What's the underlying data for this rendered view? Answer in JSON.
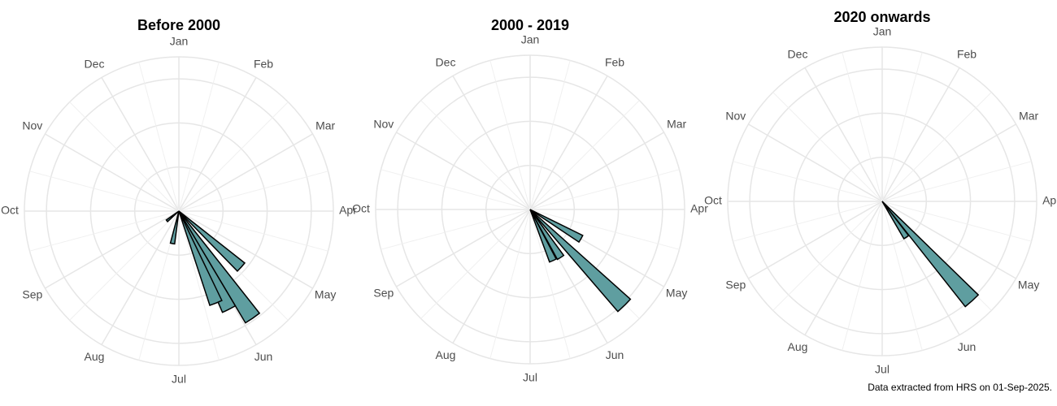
{
  "chart_data": [
    {
      "type": "polar_bar",
      "title": "Before 2000",
      "x": [
        5.4,
        5.85,
        6.1,
        6.27,
        7.37,
        8.7
      ],
      "values": [
        19,
        29.5,
        25,
        22.5,
        7.5,
        3.5
      ],
      "color": "#5f9ea0",
      "xlim": [
        0.5,
        12.5
      ],
      "xticks": [
        {
          "value": 1,
          "label": "Jan"
        },
        {
          "value": 2,
          "label": "Feb"
        },
        {
          "value": 3,
          "label": "Mar"
        },
        {
          "value": 4,
          "label": "Apr"
        },
        {
          "value": 5,
          "label": "May"
        },
        {
          "value": 6,
          "label": "Jun"
        },
        {
          "value": 7,
          "label": "Jul"
        },
        {
          "value": 8,
          "label": "Aug"
        },
        {
          "value": 9,
          "label": "Sep"
        },
        {
          "value": 10,
          "label": "Oct"
        },
        {
          "value": 11,
          "label": "Nov"
        },
        {
          "value": 12,
          "label": "Dec"
        }
      ],
      "ylim": [
        0,
        35
      ],
      "yticks": [
        10,
        20,
        30
      ],
      "grid": true
    },
    {
      "type": "polar_bar",
      "title": "2000 - 2019",
      "x": [
        5.0,
        5.52,
        5.92,
        6.2
      ],
      "values": [
        13.3,
        30.5,
        12.9,
        12.7
      ],
      "color": "#5f9ea0",
      "xlim": [
        0.5,
        12.5
      ],
      "xticks": [
        {
          "value": 1,
          "label": "Jan"
        },
        {
          "value": 2,
          "label": "Feb"
        },
        {
          "value": 3,
          "label": "Mar"
        },
        {
          "value": 4,
          "label": "Apr"
        },
        {
          "value": 5,
          "label": "May"
        },
        {
          "value": 6,
          "label": "Jun"
        },
        {
          "value": 7,
          "label": "Jul"
        },
        {
          "value": 8,
          "label": "Aug"
        },
        {
          "value": 9,
          "label": "Sep"
        },
        {
          "value": 10,
          "label": "Oct"
        },
        {
          "value": 11,
          "label": "Nov"
        },
        {
          "value": 12,
          "label": "Dec"
        }
      ],
      "ylim": [
        0,
        35
      ],
      "yticks": [
        10,
        20,
        30
      ],
      "grid": true
    },
    {
      "type": "polar_bar",
      "title": "2020 onwards",
      "x": [
        5.6,
        5.87
      ],
      "values": [
        30.4,
        9.8
      ],
      "color": "#5f9ea0",
      "xlim": [
        0.5,
        12.5
      ],
      "xticks": [
        {
          "value": 1,
          "label": "Jan"
        },
        {
          "value": 2,
          "label": "Feb"
        },
        {
          "value": 3,
          "label": "Mar"
        },
        {
          "value": 4,
          "label": "Apr"
        },
        {
          "value": 5,
          "label": "May"
        },
        {
          "value": 6,
          "label": "Jun"
        },
        {
          "value": 7,
          "label": "Jul"
        },
        {
          "value": 8,
          "label": "Aug"
        },
        {
          "value": 9,
          "label": "Sep"
        },
        {
          "value": 10,
          "label": "Oct"
        },
        {
          "value": 11,
          "label": "Nov"
        },
        {
          "value": 12,
          "label": "Dec"
        }
      ],
      "ylim": [
        0,
        35
      ],
      "yticks": [
        10,
        20,
        30
      ],
      "grid": true
    }
  ],
  "caption": "Data extracted from HRS on 01-Sep-2025."
}
